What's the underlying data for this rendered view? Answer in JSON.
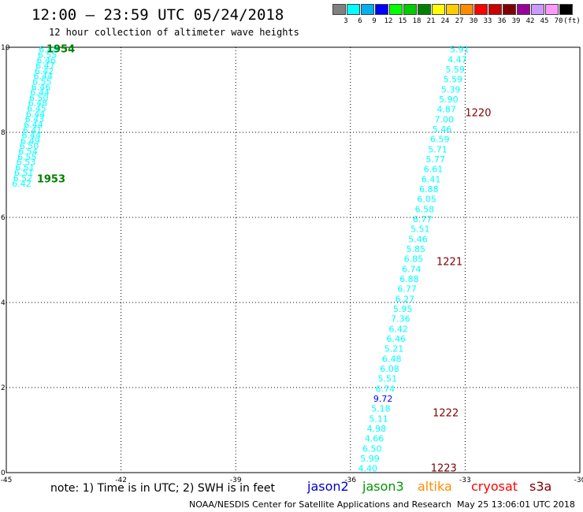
{
  "header": {
    "title": "12:00 – 23:59 UTC 05/24/2018",
    "subtitle": "12 hour collection of altimeter wave heights"
  },
  "colorbar": {
    "unit": "(ft)",
    "items": [
      {
        "label": "3",
        "color": "#808080"
      },
      {
        "label": "6",
        "color": "#00ffff"
      },
      {
        "label": "9",
        "color": "#00b0f0"
      },
      {
        "label": "12",
        "color": "#0000ff"
      },
      {
        "label": "15",
        "color": "#00ff00"
      },
      {
        "label": "18",
        "color": "#00cc00"
      },
      {
        "label": "21",
        "color": "#008000"
      },
      {
        "label": "24",
        "color": "#ffff00"
      },
      {
        "label": "27",
        "color": "#ffcc00"
      },
      {
        "label": "30",
        "color": "#ff8c00"
      },
      {
        "label": "33",
        "color": "#ff0000"
      },
      {
        "label": "36",
        "color": "#cc0000"
      },
      {
        "label": "39",
        "color": "#800000"
      },
      {
        "label": "42",
        "color": "#990099"
      },
      {
        "label": "45",
        "color": "#cc99ff"
      },
      {
        "label": "70",
        "color": "#ff99ff"
      },
      {
        "label": "",
        "color": "#000000"
      }
    ]
  },
  "axes": {
    "x_ticks": [
      "-45",
      "-42",
      "-39",
      "-36",
      "-33",
      "-30"
    ],
    "y_ticks": [
      "0",
      "2",
      "4",
      "6",
      "8",
      "10"
    ]
  },
  "tracks": [
    {
      "name": "track-left",
      "color": "#00ffff",
      "lon_start": -44.85,
      "lat_start": 6.8,
      "lon_end": -44.15,
      "lat_end": 9.95,
      "values": [
        "6.42",
        "6.52",
        "6.51",
        "6.51",
        "6.53",
        "6.55",
        "6.54",
        "6.50",
        "6.49",
        "6.44",
        "6.41",
        "6.44",
        "6.43",
        "6.44",
        "6.45",
        "6.48",
        "6.50",
        "6.44",
        "6.46",
        "6.55",
        "6.44",
        "6.42",
        "6.47",
        "6.46",
        "6.55",
        "6.48"
      ],
      "times": [
        {
          "label": "1953",
          "lon": -44.2,
          "lat": 6.9
        },
        {
          "label": "1954",
          "lon": -43.95,
          "lat": 9.95
        }
      ]
    },
    {
      "name": "track-right",
      "color": "#00ffff",
      "lon_start": -35.8,
      "lat_start": 0.1,
      "lon_end": -33.4,
      "lat_end": 9.95,
      "values": [
        "4.40",
        "5.99",
        "6.50",
        "4.66",
        "4.98",
        "5.11",
        "5.18",
        "9.72",
        "6.74",
        "5.51",
        "6.08",
        "6.48",
        "5.21",
        "6.46",
        "6.42",
        "7.36",
        "5.95",
        "6.27",
        "6.77",
        "6.88",
        "6.74",
        "6.85",
        "5.85",
        "5.46",
        "5.51",
        "6.77",
        "6.58",
        "6.05",
        "6.88",
        "6.41",
        "6.61",
        "5.77",
        "5.71",
        "6.59",
        "5.46",
        "7.00",
        "4.87",
        "5.90",
        "5.39",
        "5.59",
        "5.59",
        "4.47",
        "5.91"
      ],
      "highlight": {
        "index": 7,
        "color": "#0000ff"
      },
      "times": [
        {
          "label": "1223",
          "lon": -33.9,
          "lat": 0.1
        },
        {
          "label": "1222",
          "lon": -33.85,
          "lat": 1.4
        },
        {
          "label": "1221",
          "lon": -33.75,
          "lat": 4.95
        },
        {
          "label": "1220",
          "lon": -33.0,
          "lat": 8.45
        }
      ]
    }
  ],
  "footer": {
    "note": "note: 1) Time is in UTC; 2) SWH is in feet",
    "satellites": [
      {
        "name": "jason2",
        "color": "#0000cc"
      },
      {
        "name": "jason3",
        "color": "#009900"
      },
      {
        "name": "altika",
        "color": "#ff8c00"
      },
      {
        "name": "cryosat",
        "color": "#ff0000"
      },
      {
        "name": "s3a",
        "color": "#800000"
      }
    ],
    "credit": "NOAA/NESDIS Center for Satellite Applications and Research",
    "timestamp": "May 25 13:06:01 UTC 2018"
  }
}
